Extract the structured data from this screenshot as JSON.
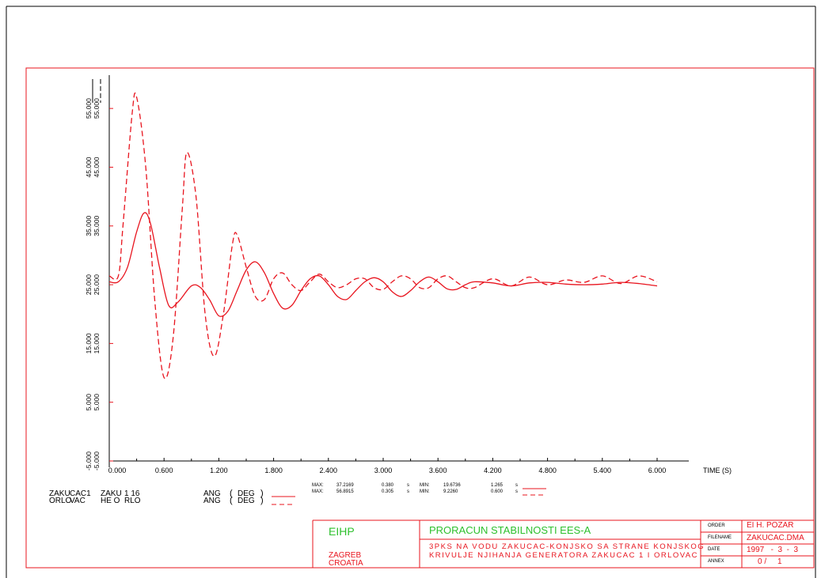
{
  "chart_data": {
    "type": "line",
    "xlabel": "TIME (S)",
    "xlim": [
      0,
      6.0
    ],
    "ylim": [
      -5,
      60
    ],
    "x_ticks": [
      "0.000",
      "0.600",
      "1.200",
      "1.800",
      "2.400",
      "3.000",
      "3.600",
      "4.200",
      "4.800",
      "5.400",
      "6.000"
    ],
    "y_ticks": [
      "-5.000",
      "5.000",
      "15.000",
      "25.000",
      "35.000",
      "45.000",
      "55.000"
    ],
    "series": [
      {
        "style": "solid",
        "color": "#e8141e",
        "x": [
          0,
          0.1,
          0.2,
          0.3,
          0.38,
          0.45,
          0.55,
          0.65,
          0.75,
          0.9,
          1.0,
          1.1,
          1.2,
          1.3,
          1.4,
          1.5,
          1.6,
          1.7,
          1.8,
          1.9,
          2.0,
          2.1,
          2.2,
          2.3,
          2.4,
          2.5,
          2.6,
          2.7,
          2.8,
          2.9,
          3.0,
          3.1,
          3.2,
          3.3,
          3.4,
          3.5,
          3.6,
          3.7,
          3.8,
          3.9,
          4.0,
          4.2,
          4.4,
          4.6,
          4.8,
          5.0,
          5.2,
          5.4,
          5.6,
          5.8,
          6.0
        ],
        "y": [
          25.5,
          25.5,
          28,
          34,
          37.2,
          35.5,
          28,
          21.5,
          22,
          24.8,
          24.5,
          22.4,
          19.7,
          20.5,
          24,
          27.5,
          28.9,
          27,
          23.5,
          21,
          21.5,
          24,
          26,
          26.5,
          25,
          23,
          22.5,
          24,
          25.5,
          26.2,
          25.5,
          23.8,
          23,
          24,
          25.5,
          26.3,
          25.5,
          24.3,
          24.2,
          25,
          25.5,
          25.3,
          24.8,
          25.3,
          25.4,
          25.1,
          25,
          25.1,
          25.4,
          25.2,
          24.8
        ]
      },
      {
        "style": "dashed",
        "color": "#e8141e",
        "x": [
          0,
          0.1,
          0.15,
          0.25,
          0.3,
          0.4,
          0.5,
          0.6,
          0.7,
          0.8,
          0.85,
          0.95,
          1.05,
          1.15,
          1.25,
          1.35,
          1.4,
          1.5,
          1.6,
          1.7,
          1.8,
          1.9,
          2.0,
          2.1,
          2.2,
          2.3,
          2.4,
          2.5,
          2.6,
          2.7,
          2.8,
          2.9,
          3.0,
          3.1,
          3.2,
          3.3,
          3.4,
          3.5,
          3.6,
          3.7,
          3.8,
          3.9,
          4.0,
          4.2,
          4.4,
          4.6,
          4.8,
          5.0,
          5.2,
          5.4,
          5.6,
          5.8,
          6.0
        ],
        "y": [
          26.5,
          26.5,
          35,
          54,
          56.9,
          45,
          22,
          9.2,
          16,
          38,
          47.5,
          40,
          20,
          12.8,
          20,
          32,
          33.5,
          28,
          23,
          22.5,
          26,
          27,
          25,
          24,
          25.5,
          26.8,
          25.5,
          24.5,
          25,
          26,
          26,
          24.5,
          24.2,
          25.5,
          26.5,
          26,
          24.5,
          24.5,
          26,
          26.5,
          25.5,
          24.5,
          24.5,
          26,
          24.8,
          26.3,
          25,
          25.8,
          25.4,
          26.5,
          25.2,
          26.5,
          25.5
        ]
      }
    ]
  },
  "legend": {
    "row1": {
      "name1": "ZAKU",
      "name2": "CAC1",
      "name3": "ZAKU",
      "name4": "1 16",
      "var": "ANG",
      "unit_open": "(",
      "unit": "DEG",
      "unit_close": ")",
      "max_label": "MAX:",
      "max": "37.2169",
      "max_t": "0.380",
      "s1": "s",
      "min_label": "MIN:",
      "min": "19.6736",
      "min_t": "1.265",
      "s2": "s"
    },
    "row2": {
      "name1": "ORLO",
      "name2": "VAC",
      "name3": "HE O",
      "name4": "RLO",
      "var": "ANG",
      "unit_open": "(",
      "unit": "DEG",
      "unit_close": ")",
      "max_label": "MAX:",
      "max": "56.8915",
      "max_t": "0.305",
      "s1": "s",
      "min_label": "MIN:",
      "min": "9.2260",
      "min_t": "0.600",
      "s2": "s"
    }
  },
  "titleblock": {
    "org": "EIHP",
    "city": "ZAGREB",
    "country": "CROATIA",
    "title": "PRORACUN STABILNOSTI EES-A",
    "desc1": "3PKS NA VODU ZAKUCAC-KONJSKO SA STRANE KONJSKOG",
    "desc2": "KRIVULJE NJIHANJA GENERATORA ZAKUCAC 1 I ORLOVAC",
    "order_label": "ORDER",
    "order_value": "EI H. POZAR",
    "filename_label": "FILENAME",
    "filename_value": "ZAKUCAC.DMA",
    "date_label": "DATE",
    "date_value": "1997   -  3  -  3",
    "annex_label": "ANNEX",
    "annex_value": "0 /     1"
  },
  "colors": {
    "plot": "#e8141e",
    "green": "#2ec02e",
    "frame": "#000000"
  }
}
